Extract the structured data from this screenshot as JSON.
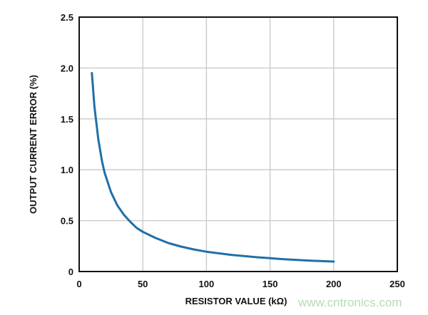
{
  "chart_data": {
    "type": "line",
    "title": "",
    "xlabel": "RESISTOR VALUE (kΩ)",
    "ylabel": "OUTPUT CURRENT ERROR (%)",
    "xlim": [
      0,
      250
    ],
    "ylim": [
      0,
      2.5
    ],
    "xticks": [
      "0",
      "50",
      "100",
      "150",
      "200",
      "250"
    ],
    "yticks": [
      "0",
      "0.5",
      "1.0",
      "1.5",
      "2.0",
      "2.5"
    ],
    "grid": true,
    "line_color": "#1f6fa8",
    "series": [
      {
        "x": [
          10,
          12,
          15,
          18,
          20,
          25,
          30,
          35,
          40,
          45,
          50,
          60,
          70,
          80,
          90,
          100,
          120,
          140,
          160,
          180,
          200
        ],
        "y": [
          1.95,
          1.62,
          1.3,
          1.08,
          0.97,
          0.78,
          0.65,
          0.56,
          0.49,
          0.43,
          0.39,
          0.33,
          0.28,
          0.245,
          0.217,
          0.195,
          0.163,
          0.14,
          0.122,
          0.108,
          0.098
        ]
      }
    ]
  },
  "watermark": "www.cntronics.com"
}
